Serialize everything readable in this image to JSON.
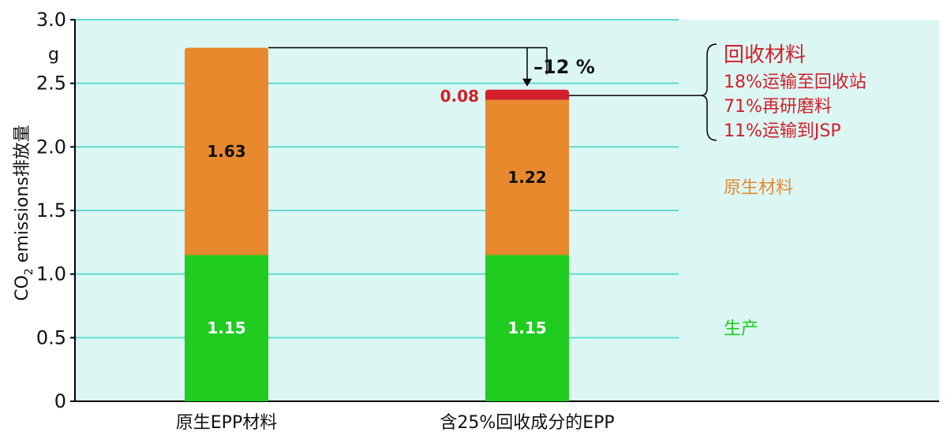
{
  "chart_data": {
    "type": "bar",
    "stacked": true,
    "ylabel_main": "CO",
    "ylabel_sub": "2",
    "ylabel_rest": " emissions排放量",
    "y_unit": "g",
    "ylim": [
      0,
      3.0
    ],
    "y_ticks": [
      "0",
      "0.5",
      "1.0",
      "1.5",
      "2.0",
      "2.5",
      "3.0"
    ],
    "y_tick_values": [
      0,
      0.5,
      1.0,
      1.5,
      2.0,
      2.5,
      3.0
    ],
    "grid": true,
    "categories": [
      "原生EPP材料",
      "含25%回收成分的EPP"
    ],
    "series": [
      {
        "name": "生产",
        "color": "#1fcc1f",
        "values": [
          1.15,
          1.15
        ],
        "labels": [
          "1.15",
          "1.15"
        ]
      },
      {
        "name": "原生材料",
        "color": "#e8892e",
        "values": [
          1.63,
          1.22
        ],
        "labels": [
          "1.63",
          "1.22"
        ]
      },
      {
        "name": "回收材料",
        "color": "#d21f2b",
        "values": [
          0,
          0.08
        ],
        "labels": [
          "",
          "0.08"
        ]
      }
    ],
    "reduction_annotation": "–12 %",
    "recycled_legend": {
      "title": "回收材料",
      "items": [
        "18%运输至回收站",
        "71%再研磨料",
        "11%运输到JSP"
      ]
    },
    "colors": {
      "plot_background": "#dcf7f3",
      "gridline": "#62d9d4",
      "recycled_text": "#d21f2b",
      "virgin_text": "#e8892e",
      "production_text": "#1fcc1f"
    }
  }
}
